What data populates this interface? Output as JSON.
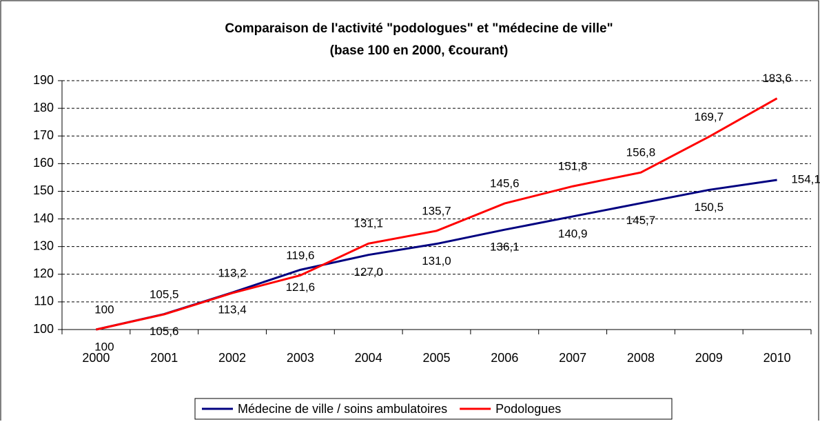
{
  "chart_data": {
    "type": "line",
    "title": "Comparaison de l'activité \"podologues\" et \"médecine de ville\"",
    "subtitle": "(base 100 en 2000, €courant)",
    "categories": [
      "2000",
      "2001",
      "2002",
      "2003",
      "2004",
      "2005",
      "2006",
      "2007",
      "2008",
      "2009",
      "2010"
    ],
    "series": [
      {
        "name": "Médecine de ville / soins ambulatoires",
        "color": "#000080",
        "values": [
          100,
          105.6,
          113.4,
          121.6,
          127.0,
          131.0,
          136.1,
          140.9,
          145.7,
          150.5,
          154.1
        ],
        "value_labels": [
          "100",
          "105,6",
          "113,4",
          "121,6",
          "127,0",
          "131,0",
          "136,1",
          "140,9",
          "145,7",
          "150,5",
          "154,1"
        ]
      },
      {
        "name": "Podologues",
        "color": "#ff0000",
        "values": [
          100,
          105.5,
          113.2,
          119.6,
          131.1,
          135.7,
          145.6,
          151.8,
          156.8,
          169.7,
          183.6
        ],
        "value_labels": [
          "100",
          "105,5",
          "113,2",
          "119,6",
          "131,1",
          "135,7",
          "145,6",
          "151,8",
          "156,8",
          "169,7",
          "183,6"
        ]
      }
    ],
    "ylim": [
      100,
      190
    ],
    "yticks": [
      100,
      110,
      120,
      130,
      140,
      150,
      160,
      170,
      180,
      190
    ],
    "grid": true,
    "legend": "bottom"
  }
}
